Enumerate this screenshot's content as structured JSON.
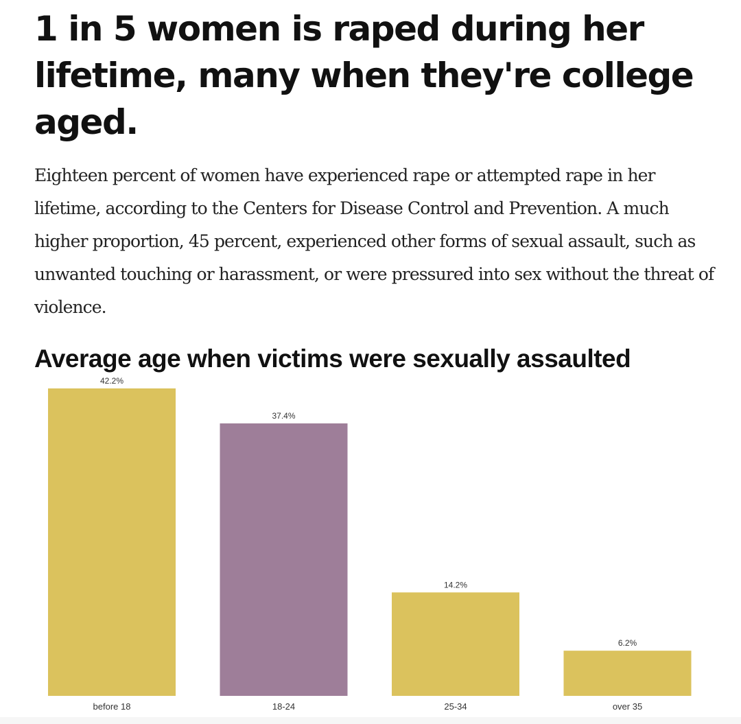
{
  "headline": "1 in 5 women is raped during her lifetime, many when they're college aged.",
  "body": "Eighteen percent of women have experienced rape or attempted rape in her lifetime, according to the Centers for Disease Control and Prevention. A much higher proportion, 45 percent, experienced other forms of sexual assault, such as unwanted touching or harassment, or were pressured into sex without the threat of violence.",
  "chart_data": {
    "type": "bar",
    "title": "Average age when victims were sexually assaulted",
    "categories": [
      "before 18",
      "18-24",
      "25-34",
      "over 35"
    ],
    "values": [
      42.2,
      37.4,
      14.2,
      6.2
    ],
    "value_labels": [
      "42.2%",
      "37.4%",
      "14.2%",
      "6.2%"
    ],
    "unit": "%",
    "colors": [
      "#dbc25d",
      "#9e7e99",
      "#dbc25d",
      "#dbc25d"
    ],
    "xlabel": "",
    "ylabel": "",
    "ylim": [
      0,
      42.2
    ],
    "grid": false,
    "legend": "none"
  }
}
